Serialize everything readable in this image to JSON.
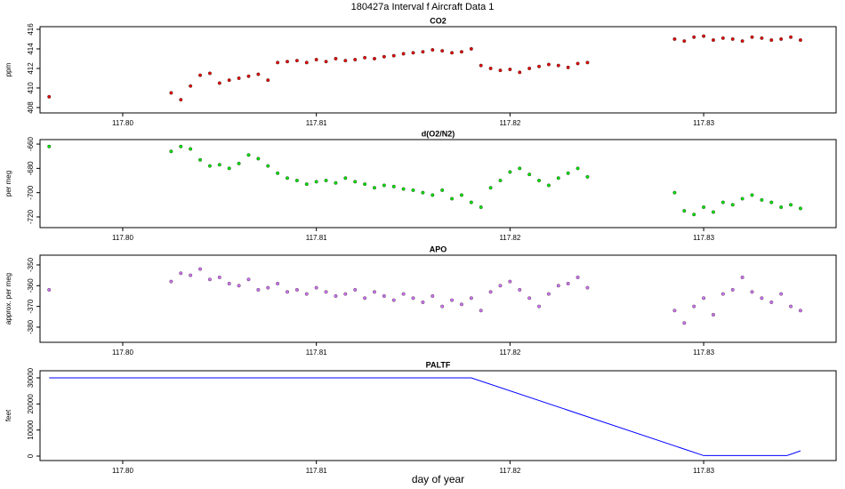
{
  "title": "180427a   Interval f Aircraft Data 1",
  "chart_data": [
    {
      "type": "scatter",
      "title": "CO2",
      "ylabel": "ppm",
      "color": "#e00000",
      "x": [
        117.7962,
        117.8025,
        117.803,
        117.8035,
        117.804,
        117.8045,
        117.805,
        117.8055,
        117.806,
        117.8065,
        117.807,
        117.8075,
        117.808,
        117.8085,
        117.809,
        117.8095,
        117.81,
        117.8105,
        117.811,
        117.8115,
        117.812,
        117.8125,
        117.813,
        117.8135,
        117.814,
        117.8145,
        117.815,
        117.8155,
        117.816,
        117.8165,
        117.817,
        117.8175,
        117.818,
        117.8185,
        117.819,
        117.8195,
        117.82,
        117.8205,
        117.821,
        117.8215,
        117.822,
        117.8225,
        117.823,
        117.8235,
        117.824,
        117.8285,
        117.829,
        117.8295,
        117.83,
        117.8305,
        117.831,
        117.8315,
        117.832,
        117.8325,
        117.833,
        117.8335,
        117.834,
        117.8345,
        117.835
      ],
      "values": [
        409.1,
        409.5,
        408.8,
        410.2,
        411.3,
        411.5,
        410.5,
        410.8,
        411.0,
        411.2,
        411.4,
        410.8,
        412.6,
        412.7,
        412.8,
        412.6,
        412.9,
        412.7,
        413.0,
        412.8,
        412.9,
        413.1,
        413.0,
        413.2,
        413.3,
        413.5,
        413.6,
        413.7,
        413.9,
        413.8,
        413.6,
        413.7,
        414.0,
        412.3,
        412.0,
        411.8,
        411.9,
        411.6,
        412.0,
        412.2,
        412.4,
        412.3,
        412.1,
        412.5,
        412.6,
        415.0,
        414.8,
        415.2,
        415.3,
        414.9,
        415.1,
        415.0,
        414.8,
        415.2,
        415.1,
        414.9,
        415.0,
        415.2,
        414.9
      ],
      "xlim": [
        117.79573,
        117.83684
      ],
      "xticks": [
        {
          "value": 117.8,
          "label": "117.80"
        },
        {
          "value": 117.81,
          "label": "117.81"
        },
        {
          "value": 117.82,
          "label": "117.82"
        },
        {
          "value": 117.83,
          "label": "117.83"
        }
      ],
      "ylim": [
        407.45,
        416.27
      ],
      "yticks": [
        408,
        410,
        412,
        414,
        416
      ]
    },
    {
      "type": "scatter",
      "title": "d(O2/N2)",
      "ylabel": "per meg",
      "color": "#00e000",
      "x": [
        117.7962,
        117.8025,
        117.803,
        117.8035,
        117.804,
        117.8045,
        117.805,
        117.8055,
        117.806,
        117.8065,
        117.807,
        117.8075,
        117.808,
        117.8085,
        117.809,
        117.8095,
        117.81,
        117.8105,
        117.811,
        117.8115,
        117.812,
        117.8125,
        117.813,
        117.8135,
        117.814,
        117.8145,
        117.815,
        117.8155,
        117.816,
        117.8165,
        117.817,
        117.8175,
        117.818,
        117.8185,
        117.819,
        117.8195,
        117.82,
        117.8205,
        117.821,
        117.8215,
        117.822,
        117.8225,
        117.823,
        117.8235,
        117.824,
        117.8285,
        117.829,
        117.8295,
        117.83,
        117.8305,
        117.831,
        117.8315,
        117.832,
        117.8325,
        117.833,
        117.8335,
        117.834,
        117.8345,
        117.835
      ],
      "values": [
        -662,
        -666,
        -662,
        -664,
        -673,
        -678,
        -677,
        -680,
        -676,
        -669,
        -672,
        -678,
        -684,
        -688,
        -690,
        -693,
        -691,
        -690,
        -692,
        -688,
        -691,
        -693,
        -696,
        -694,
        -695,
        -697,
        -698,
        -700,
        -702,
        -698,
        -705,
        -702,
        -708,
        -712,
        -696,
        -690,
        -683,
        -680,
        -685,
        -690,
        -694,
        -688,
        -684,
        -680,
        -687,
        -700,
        -715,
        -718,
        -712,
        -716,
        -708,
        -710,
        -705,
        -702,
        -706,
        -708,
        -712,
        -710,
        -713
      ],
      "xlim": [
        117.79573,
        117.83684
      ],
      "xticks": [
        {
          "value": 117.8,
          "label": "117.80"
        },
        {
          "value": 117.81,
          "label": "117.81"
        },
        {
          "value": 117.82,
          "label": "117.82"
        },
        {
          "value": 117.83,
          "label": "117.83"
        }
      ],
      "ylim": [
        -728.8,
        -656.3
      ],
      "yticks": [
        -720,
        -700,
        -680,
        -660
      ]
    },
    {
      "type": "scatter",
      "title": "APO",
      "ylabel": "approx. per meg",
      "color": "#d070f0",
      "x": [
        117.7962,
        117.8025,
        117.803,
        117.8035,
        117.804,
        117.8045,
        117.805,
        117.8055,
        117.806,
        117.8065,
        117.807,
        117.8075,
        117.808,
        117.8085,
        117.809,
        117.8095,
        117.81,
        117.8105,
        117.811,
        117.8115,
        117.812,
        117.8125,
        117.813,
        117.8135,
        117.814,
        117.8145,
        117.815,
        117.8155,
        117.816,
        117.8165,
        117.817,
        117.8175,
        117.818,
        117.8185,
        117.819,
        117.8195,
        117.82,
        117.8205,
        117.821,
        117.8215,
        117.822,
        117.8225,
        117.823,
        117.8235,
        117.824,
        117.8285,
        117.829,
        117.8295,
        117.83,
        117.8305,
        117.831,
        117.8315,
        117.832,
        117.8325,
        117.833,
        117.8335,
        117.834,
        117.8345,
        117.835
      ],
      "values": [
        -362,
        -358,
        -354,
        -355,
        -352,
        -357,
        -356,
        -359,
        -360,
        -357,
        -362,
        -361,
        -359,
        -363,
        -362,
        -364,
        -361,
        -363,
        -365,
        -364,
        -362,
        -366,
        -363,
        -365,
        -367,
        -364,
        -366,
        -368,
        -365,
        -370,
        -367,
        -369,
        -366,
        -372,
        -363,
        -360,
        -358,
        -362,
        -366,
        -370,
        -364,
        -360,
        -359,
        -356,
        -361,
        -372,
        -378,
        -370,
        -366,
        -374,
        -364,
        -362,
        -356,
        -363,
        -366,
        -368,
        -364,
        -370,
        -372
      ],
      "xlim": [
        117.79573,
        117.83684
      ],
      "xticks": [
        {
          "value": 117.8,
          "label": "117.80"
        },
        {
          "value": 117.81,
          "label": "117.81"
        },
        {
          "value": 117.82,
          "label": "117.82"
        },
        {
          "value": 117.83,
          "label": "117.83"
        }
      ],
      "ylim": [
        -387.3,
        -345.3
      ],
      "yticks": [
        -380,
        -370,
        -360,
        -350
      ]
    },
    {
      "type": "line",
      "title": "PALTF",
      "ylabel": "feet",
      "xlabel": "day of year",
      "color": "#0000ff",
      "x": [
        117.7962,
        117.818,
        117.83,
        117.8343,
        117.835
      ],
      "values": [
        30000,
        30000,
        200,
        200,
        2000
      ],
      "xlim": [
        117.79573,
        117.83684
      ],
      "xticks": [
        {
          "value": 117.8,
          "label": "117.80"
        },
        {
          "value": 117.81,
          "label": "117.81"
        },
        {
          "value": 117.82,
          "label": "117.82"
        },
        {
          "value": 117.83,
          "label": "117.83"
        }
      ],
      "ylim": [
        -1705,
        32727
      ],
      "yticks": [
        0,
        10000,
        20000,
        30000
      ]
    }
  ]
}
